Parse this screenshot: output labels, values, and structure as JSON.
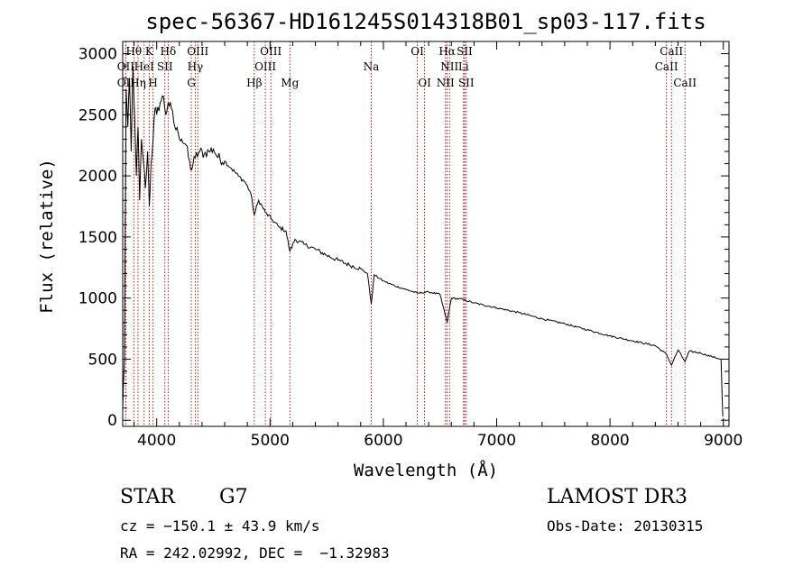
{
  "chart_data": {
    "type": "line",
    "title": "spec-56367-HD161245S014318B01_sp03-117.fits",
    "xlabel": "Wavelength (Å)",
    "ylabel": "Flux (relative)",
    "xlim": [
      3700,
      9050
    ],
    "ylim": [
      -50,
      3100
    ],
    "xticks": [
      4000,
      5000,
      6000,
      7000,
      8000,
      9000
    ],
    "xtick_labels": [
      "4000",
      "5000",
      "6000",
      "7000",
      "8000",
      "9000"
    ],
    "yticks": [
      0,
      500,
      1000,
      1500,
      2000,
      2500,
      3000
    ],
    "ytick_labels": [
      "0",
      "500",
      "1000",
      "1500",
      "2000",
      "2500",
      "3000"
    ],
    "spectrum_nodes": [
      {
        "x": 3700,
        "y": 100
      },
      {
        "x": 3715,
        "y": 500
      },
      {
        "x": 3730,
        "y": 2700
      },
      {
        "x": 3745,
        "y": 2400
      },
      {
        "x": 3760,
        "y": 2800
      },
      {
        "x": 3775,
        "y": 2200
      },
      {
        "x": 3790,
        "y": 2900
      },
      {
        "x": 3805,
        "y": 2500
      },
      {
        "x": 3820,
        "y": 2000
      },
      {
        "x": 3835,
        "y": 2400
      },
      {
        "x": 3850,
        "y": 1800
      },
      {
        "x": 3865,
        "y": 2300
      },
      {
        "x": 3885,
        "y": 2100
      },
      {
        "x": 3900,
        "y": 1900
      },
      {
        "x": 3920,
        "y": 2200
      },
      {
        "x": 3935,
        "y": 1750
      },
      {
        "x": 3950,
        "y": 2100
      },
      {
        "x": 3968,
        "y": 2300
      },
      {
        "x": 3985,
        "y": 2550
      },
      {
        "x": 4000,
        "y": 2500
      },
      {
        "x": 4030,
        "y": 2600
      },
      {
        "x": 4060,
        "y": 2650
      },
      {
        "x": 4080,
        "y": 2500
      },
      {
        "x": 4101,
        "y": 2600
      },
      {
        "x": 4130,
        "y": 2550
      },
      {
        "x": 4160,
        "y": 2400
      },
      {
        "x": 4190,
        "y": 2350
      },
      {
        "x": 4220,
        "y": 2300
      },
      {
        "x": 4260,
        "y": 2250
      },
      {
        "x": 4300,
        "y": 2050
      },
      {
        "x": 4340,
        "y": 2150
      },
      {
        "x": 4380,
        "y": 2200
      },
      {
        "x": 4420,
        "y": 2180
      },
      {
        "x": 4460,
        "y": 2200
      },
      {
        "x": 4500,
        "y": 2220
      },
      {
        "x": 4540,
        "y": 2150
      },
      {
        "x": 4600,
        "y": 2120
      },
      {
        "x": 4660,
        "y": 2060
      },
      {
        "x": 4720,
        "y": 2000
      },
      {
        "x": 4780,
        "y": 1950
      },
      {
        "x": 4830,
        "y": 1860
      },
      {
        "x": 4861,
        "y": 1680
      },
      {
        "x": 4900,
        "y": 1800
      },
      {
        "x": 4960,
        "y": 1700
      },
      {
        "x": 5020,
        "y": 1640
      },
      {
        "x": 5080,
        "y": 1580
      },
      {
        "x": 5140,
        "y": 1550
      },
      {
        "x": 5175,
        "y": 1380
      },
      {
        "x": 5220,
        "y": 1480
      },
      {
        "x": 5300,
        "y": 1440
      },
      {
        "x": 5400,
        "y": 1400
      },
      {
        "x": 5500,
        "y": 1350
      },
      {
        "x": 5600,
        "y": 1310
      },
      {
        "x": 5700,
        "y": 1270
      },
      {
        "x": 5800,
        "y": 1240
      },
      {
        "x": 5860,
        "y": 1200
      },
      {
        "x": 5893,
        "y": 950
      },
      {
        "x": 5920,
        "y": 1190
      },
      {
        "x": 6000,
        "y": 1140
      },
      {
        "x": 6100,
        "y": 1100
      },
      {
        "x": 6200,
        "y": 1070
      },
      {
        "x": 6300,
        "y": 1040
      },
      {
        "x": 6400,
        "y": 1050
      },
      {
        "x": 6500,
        "y": 1030
      },
      {
        "x": 6563,
        "y": 800
      },
      {
        "x": 6600,
        "y": 1000
      },
      {
        "x": 6700,
        "y": 990
      },
      {
        "x": 6800,
        "y": 960
      },
      {
        "x": 7000,
        "y": 920
      },
      {
        "x": 7200,
        "y": 880
      },
      {
        "x": 7400,
        "y": 830
      },
      {
        "x": 7600,
        "y": 790
      },
      {
        "x": 7800,
        "y": 740
      },
      {
        "x": 8000,
        "y": 690
      },
      {
        "x": 8200,
        "y": 650
      },
      {
        "x": 8400,
        "y": 610
      },
      {
        "x": 8498,
        "y": 540
      },
      {
        "x": 8542,
        "y": 450
      },
      {
        "x": 8600,
        "y": 575
      },
      {
        "x": 8662,
        "y": 480
      },
      {
        "x": 8700,
        "y": 565
      },
      {
        "x": 8800,
        "y": 550
      },
      {
        "x": 8900,
        "y": 520
      },
      {
        "x": 8980,
        "y": 500
      },
      {
        "x": 8995,
        "y": 30
      }
    ],
    "spectral_lines": [
      {
        "label": "OII",
        "x": 3727,
        "row": 1
      },
      {
        "label": "Hθ",
        "x": 3798,
        "row": 0
      },
      {
        "label": "OII",
        "x": 3727,
        "row": 2
      },
      {
        "label": "HeI",
        "x": 3889,
        "row": 1
      },
      {
        "label": "Hη",
        "x": 3835,
        "row": 2
      },
      {
        "label": "K",
        "x": 3934,
        "row": 0
      },
      {
        "label": "SII",
        "x": 4072,
        "row": 1
      },
      {
        "label": "H",
        "x": 3968,
        "row": 2
      },
      {
        "label": "Hδ",
        "x": 4101,
        "row": 0
      },
      {
        "label": "OIII",
        "x": 4363,
        "row": 0
      },
      {
        "label": "Hγ",
        "x": 4340,
        "row": 1
      },
      {
        "label": "G",
        "x": 4305,
        "row": 2
      },
      {
        "label": "Hβ",
        "x": 4861,
        "row": 2
      },
      {
        "label": "OIII",
        "x": 5007,
        "row": 0
      },
      {
        "label": "OIII",
        "x": 4959,
        "row": 1
      },
      {
        "label": "Mg",
        "x": 5175,
        "row": 2
      },
      {
        "label": "Na",
        "x": 5893,
        "row": 1
      },
      {
        "label": "OI",
        "x": 6300,
        "row": 0
      },
      {
        "label": "OI",
        "x": 6364,
        "row": 2
      },
      {
        "label": "Hα",
        "x": 6563,
        "row": 0
      },
      {
        "label": "SII",
        "x": 6717,
        "row": 0
      },
      {
        "label": "NII",
        "x": 6584,
        "row": 1
      },
      {
        "label": "Li",
        "x": 6708,
        "row": 1
      },
      {
        "label": "NII",
        "x": 6548,
        "row": 2
      },
      {
        "label": "SII",
        "x": 6731,
        "row": 2
      },
      {
        "label": "CaII",
        "x": 8542,
        "row": 0
      },
      {
        "label": "CaII",
        "x": 8498,
        "row": 1
      },
      {
        "label": "CaII",
        "x": 8662,
        "row": 2
      }
    ]
  },
  "info": {
    "class_label": "STAR",
    "subclass": "G7",
    "survey": "LAMOST DR3",
    "redshift": "cz = −150.1 ± 43.9 km/s",
    "obs_date": "Obs-Date: 20130315",
    "coords": "RA = 242.02992, DEC =  −1.32983"
  }
}
